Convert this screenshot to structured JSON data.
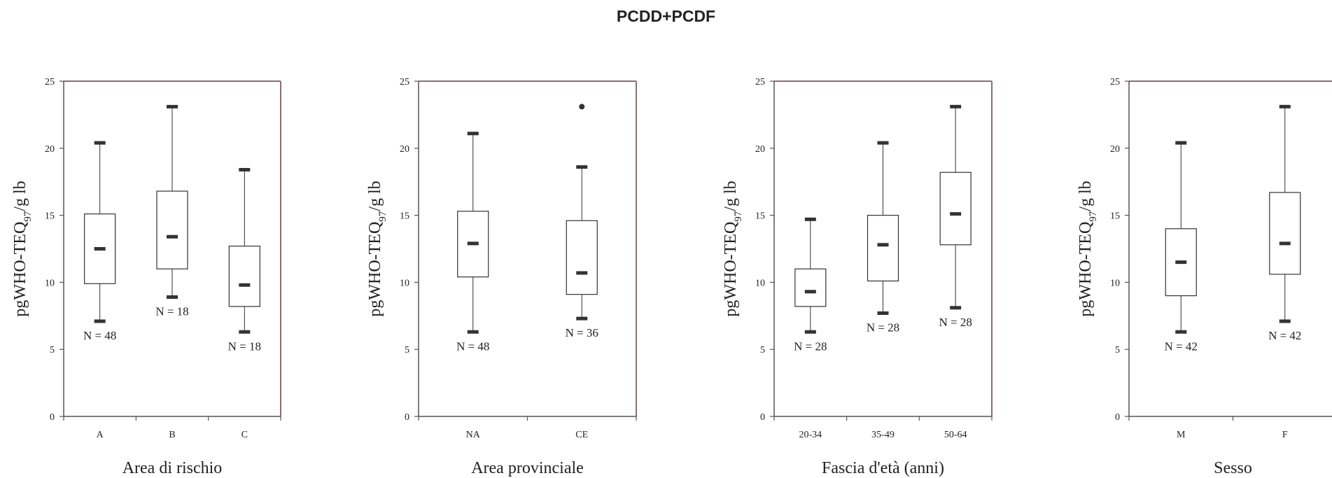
{
  "title": "PCDD+PCDF",
  "colors": {
    "frame": "#8a7070",
    "axis": "#555555",
    "box": "#333333",
    "text": "#222222"
  },
  "chart_data": [
    {
      "type": "box",
      "title": "PCDD+PCDF",
      "xlabel": "Area di rischio",
      "ylabel": "pgWHO-TEQ97/g lb",
      "ylim": [
        0,
        25
      ],
      "yticks": [
        0,
        5,
        10,
        15,
        20,
        25
      ],
      "categories": [
        "A",
        "B",
        "C"
      ],
      "boxes": [
        {
          "category": "A",
          "min": 7.1,
          "q1": 9.9,
          "median": 12.5,
          "q3": 15.1,
          "max": 20.4,
          "outliers": [],
          "n_label": "N = 48"
        },
        {
          "category": "B",
          "min": 8.9,
          "q1": 11.0,
          "median": 13.4,
          "q3": 16.8,
          "max": 23.1,
          "outliers": [],
          "n_label": "N = 18"
        },
        {
          "category": "C",
          "min": 6.3,
          "q1": 8.2,
          "median": 9.8,
          "q3": 12.7,
          "max": 18.4,
          "outliers": [],
          "n_label": "N = 18"
        }
      ]
    },
    {
      "type": "box",
      "xlabel": "Area provinciale",
      "ylabel": "pgWHO-TEQ97/g lb",
      "ylim": [
        0,
        25
      ],
      "yticks": [
        0,
        5,
        10,
        15,
        20,
        25
      ],
      "categories": [
        "NA",
        "CE"
      ],
      "boxes": [
        {
          "category": "NA",
          "min": 6.3,
          "q1": 10.4,
          "median": 12.9,
          "q3": 15.3,
          "max": 21.1,
          "outliers": [],
          "n_label": "N = 48"
        },
        {
          "category": "CE",
          "min": 7.3,
          "q1": 9.1,
          "median": 10.7,
          "q3": 14.6,
          "max": 18.6,
          "outliers": [
            23.1
          ],
          "n_label": "N = 36"
        }
      ]
    },
    {
      "type": "box",
      "xlabel": "Fascia d'età (anni)",
      "ylabel": "pgWHO-TEQ97/g lb",
      "ylim": [
        0,
        25
      ],
      "yticks": [
        0,
        5,
        10,
        15,
        20,
        25
      ],
      "categories": [
        "20-34",
        "35-49",
        "50-64"
      ],
      "boxes": [
        {
          "category": "20-34",
          "min": 6.3,
          "q1": 8.2,
          "median": 9.3,
          "q3": 11.0,
          "max": 14.7,
          "outliers": [],
          "n_label": "N = 28"
        },
        {
          "category": "35-49",
          "min": 7.7,
          "q1": 10.1,
          "median": 12.8,
          "q3": 15.0,
          "max": 20.4,
          "outliers": [],
          "n_label": "N = 28"
        },
        {
          "category": "50-64",
          "min": 8.1,
          "q1": 12.8,
          "median": 15.1,
          "q3": 18.2,
          "max": 23.1,
          "outliers": [],
          "n_label": "N = 28"
        }
      ]
    },
    {
      "type": "box",
      "xlabel": "Sesso",
      "ylabel": "pgWHO-TEQ97/g lb",
      "ylim": [
        0,
        25
      ],
      "yticks": [
        0,
        5,
        10,
        15,
        20,
        25
      ],
      "categories": [
        "M",
        "F"
      ],
      "boxes": [
        {
          "category": "M",
          "min": 6.3,
          "q1": 9.0,
          "median": 11.5,
          "q3": 14.0,
          "max": 20.4,
          "outliers": [],
          "n_label": "N = 42"
        },
        {
          "category": "F",
          "min": 7.1,
          "q1": 10.6,
          "median": 12.9,
          "q3": 16.7,
          "max": 23.1,
          "outliers": [],
          "n_label": "N = 42"
        }
      ]
    }
  ]
}
